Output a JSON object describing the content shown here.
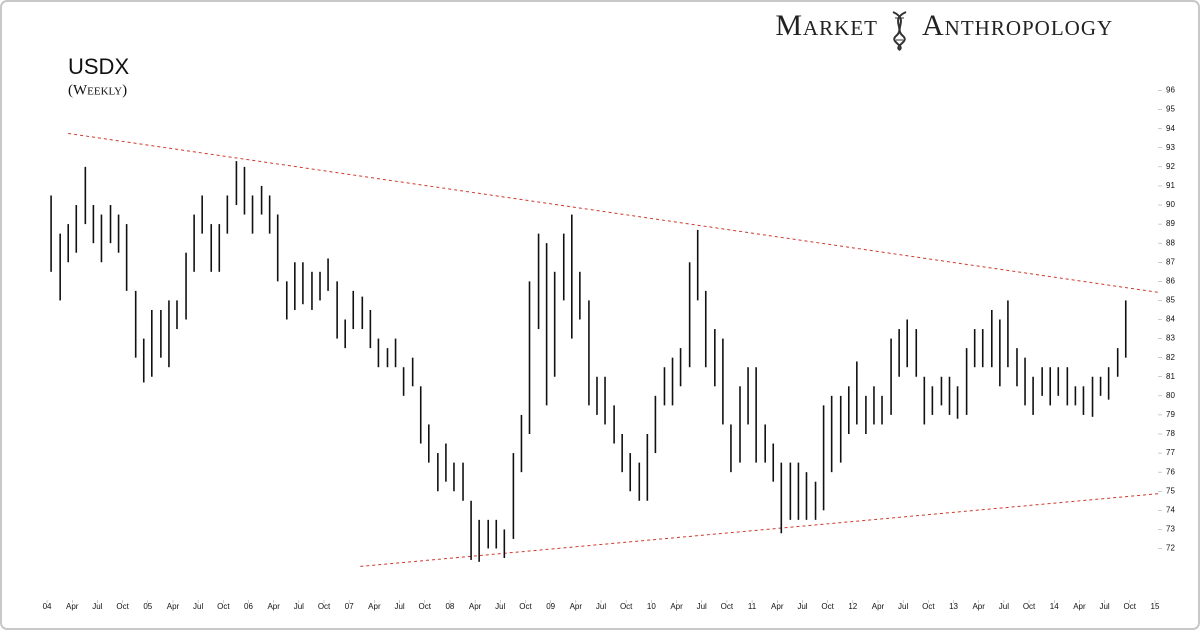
{
  "chart_data": {
    "type": "ohlc",
    "title": "USDX",
    "subtitle": "(Weekly)",
    "brand": [
      "Market",
      "Anthropology"
    ],
    "xlim": [
      2003.91,
      2015.05
    ],
    "ylim": [
      69.3,
      97.6
    ],
    "xticks": [
      {
        "value": 2004,
        "label": "04"
      },
      {
        "value": 2004.25,
        "label": "Apr"
      },
      {
        "value": 2004.5,
        "label": "Jul"
      },
      {
        "value": 2004.75,
        "label": "Oct"
      },
      {
        "value": 2005,
        "label": "05"
      },
      {
        "value": 2005.25,
        "label": "Apr"
      },
      {
        "value": 2005.5,
        "label": "Jul"
      },
      {
        "value": 2005.75,
        "label": "Oct"
      },
      {
        "value": 2006,
        "label": "06"
      },
      {
        "value": 2006.25,
        "label": "Apr"
      },
      {
        "value": 2006.5,
        "label": "Jul"
      },
      {
        "value": 2006.75,
        "label": "Oct"
      },
      {
        "value": 2007,
        "label": "07"
      },
      {
        "value": 2007.25,
        "label": "Apr"
      },
      {
        "value": 2007.5,
        "label": "Jul"
      },
      {
        "value": 2007.75,
        "label": "Oct"
      },
      {
        "value": 2008,
        "label": "08"
      },
      {
        "value": 2008.25,
        "label": "Apr"
      },
      {
        "value": 2008.5,
        "label": "Jul"
      },
      {
        "value": 2008.75,
        "label": "Oct"
      },
      {
        "value": 2009,
        "label": "09"
      },
      {
        "value": 2009.25,
        "label": "Apr"
      },
      {
        "value": 2009.5,
        "label": "Jul"
      },
      {
        "value": 2009.75,
        "label": "Oct"
      },
      {
        "value": 2010,
        "label": "10"
      },
      {
        "value": 2010.25,
        "label": "Apr"
      },
      {
        "value": 2010.5,
        "label": "Jul"
      },
      {
        "value": 2010.75,
        "label": "Oct"
      },
      {
        "value": 2011,
        "label": "11"
      },
      {
        "value": 2011.25,
        "label": "Apr"
      },
      {
        "value": 2011.5,
        "label": "Jul"
      },
      {
        "value": 2011.75,
        "label": "Oct"
      },
      {
        "value": 2012,
        "label": "12"
      },
      {
        "value": 2012.25,
        "label": "Apr"
      },
      {
        "value": 2012.5,
        "label": "Jul"
      },
      {
        "value": 2012.75,
        "label": "Oct"
      },
      {
        "value": 2013,
        "label": "13"
      },
      {
        "value": 2013.25,
        "label": "Apr"
      },
      {
        "value": 2013.5,
        "label": "Jul"
      },
      {
        "value": 2013.75,
        "label": "Oct"
      },
      {
        "value": 2014,
        "label": "14"
      },
      {
        "value": 2014.25,
        "label": "Apr"
      },
      {
        "value": 2014.5,
        "label": "Jul"
      },
      {
        "value": 2014.75,
        "label": "Oct"
      },
      {
        "value": 2015,
        "label": "15"
      }
    ],
    "yticks": [
      72,
      73,
      74,
      75,
      76,
      77,
      78,
      79,
      80,
      81,
      82,
      83,
      84,
      85,
      86,
      87,
      88,
      89,
      90,
      91,
      92,
      93,
      94,
      95,
      96
    ],
    "color": "#111111",
    "x": [
      2004.04,
      2004.13,
      2004.21,
      2004.29,
      2004.38,
      2004.46,
      2004.54,
      2004.63,
      2004.71,
      2004.79,
      2004.88,
      2004.96,
      2005.04,
      2005.13,
      2005.21,
      2005.29,
      2005.38,
      2005.46,
      2005.54,
      2005.63,
      2005.71,
      2005.79,
      2005.88,
      2005.96,
      2006.04,
      2006.13,
      2006.21,
      2006.29,
      2006.38,
      2006.46,
      2006.54,
      2006.63,
      2006.71,
      2006.79,
      2006.88,
      2006.96,
      2007.04,
      2007.13,
      2007.21,
      2007.29,
      2007.38,
      2007.46,
      2007.54,
      2007.63,
      2007.71,
      2007.79,
      2007.88,
      2007.96,
      2008.04,
      2008.13,
      2008.21,
      2008.29,
      2008.38,
      2008.46,
      2008.54,
      2008.63,
      2008.71,
      2008.79,
      2008.88,
      2008.96,
      2009.04,
      2009.13,
      2009.21,
      2009.29,
      2009.38,
      2009.46,
      2009.54,
      2009.63,
      2009.71,
      2009.79,
      2009.88,
      2009.96,
      2010.04,
      2010.13,
      2010.21,
      2010.29,
      2010.38,
      2010.46,
      2010.54,
      2010.63,
      2010.71,
      2010.79,
      2010.88,
      2010.96,
      2011.04,
      2011.13,
      2011.21,
      2011.29,
      2011.38,
      2011.46,
      2011.54,
      2011.63,
      2011.71,
      2011.79,
      2011.88,
      2011.96,
      2012.04,
      2012.13,
      2012.21,
      2012.29,
      2012.38,
      2012.46,
      2012.54,
      2012.63,
      2012.71,
      2012.79,
      2012.88,
      2012.96,
      2013.04,
      2013.13,
      2013.21,
      2013.29,
      2013.38,
      2013.46,
      2013.54,
      2013.63,
      2013.71,
      2013.79,
      2013.88,
      2013.96,
      2014.04,
      2014.13,
      2014.21,
      2014.29,
      2014.38,
      2014.46,
      2014.54,
      2014.63,
      2014.71
    ],
    "high": [
      90.5,
      88.5,
      89,
      90,
      92,
      90,
      89.5,
      90,
      89.5,
      89,
      85.5,
      83,
      84.5,
      84.5,
      85,
      85,
      87.5,
      89.5,
      90.5,
      89,
      89,
      90.5,
      92.3,
      92,
      90.5,
      91,
      90.5,
      89.5,
      86,
      87,
      87,
      86.5,
      86.5,
      87.2,
      86,
      84,
      85.5,
      85.2,
      84.5,
      83,
      82.5,
      83,
      81.5,
      82,
      80.5,
      78.5,
      77,
      77.5,
      76.5,
      76.5,
      74.5,
      73.5,
      73.5,
      73.5,
      73,
      77,
      79,
      86,
      88.5,
      88,
      86.5,
      88.5,
      89.5,
      86.5,
      85,
      81,
      81,
      79.5,
      78,
      77,
      76.5,
      78,
      80,
      81.5,
      82,
      82.5,
      87,
      88.7,
      85.5,
      83.5,
      83,
      78.5,
      80.5,
      81.5,
      81.5,
      78.5,
      77.5,
      76.5,
      76.5,
      76.5,
      76,
      75.5,
      79.5,
      80,
      80,
      80.5,
      81.8,
      80,
      80.5,
      80,
      83,
      83.5,
      84,
      83.5,
      81,
      80.5,
      81,
      81,
      80.5,
      82.5,
      83.5,
      83.5,
      84.5,
      84,
      85,
      82.5,
      82,
      81,
      81.5,
      81.5,
      81.5,
      81.5,
      80.5,
      80.5,
      81,
      81,
      81.5,
      82.5,
      85
    ],
    "low": [
      86.5,
      85,
      87,
      87.5,
      89,
      88,
      87,
      88,
      87.5,
      85.5,
      82,
      80.7,
      81,
      82,
      81.5,
      83.5,
      84,
      86.5,
      88.5,
      86.5,
      86.5,
      88.5,
      90,
      89.5,
      88.5,
      89.5,
      88.5,
      86,
      84,
      84.5,
      84.8,
      84.5,
      85,
      85.5,
      83,
      82.5,
      83.5,
      83.5,
      82.5,
      81.5,
      81.5,
      81.5,
      80,
      80.5,
      77.5,
      76.5,
      75,
      75.5,
      75,
      74.5,
      71.4,
      71.3,
      72,
      72,
      71.5,
      72.5,
      76,
      78,
      83.5,
      79.5,
      81,
      85,
      83,
      84,
      79.5,
      79,
      78.5,
      77.5,
      76,
      75,
      74.5,
      74.5,
      77,
      79.5,
      79.5,
      80.5,
      81.5,
      85,
      81.5,
      80.5,
      78.5,
      76,
      76.5,
      78.5,
      76.5,
      76.5,
      75.5,
      72.8,
      73.5,
      73.5,
      73.5,
      73.5,
      74,
      76,
      76.5,
      78,
      78.5,
      78,
      78.5,
      78.5,
      79,
      81,
      81.5,
      81,
      78.5,
      79,
      79.5,
      79,
      78.8,
      79,
      81.5,
      81.5,
      81.5,
      80.5,
      81.5,
      80.5,
      79.5,
      79,
      80,
      79.5,
      80,
      79.5,
      79.5,
      79,
      78.9,
      80,
      79.8,
      81,
      82
    ],
    "trendlines": [
      {
        "x": [
          2004.21,
          2015.05
        ],
        "y": [
          93.75,
          85.41
        ],
        "color": "#d0392b"
      },
      {
        "x": [
          2007.11,
          2015.05
        ],
        "y": [
          71.06,
          74.88
        ],
        "color": "#d0392b"
      }
    ]
  }
}
